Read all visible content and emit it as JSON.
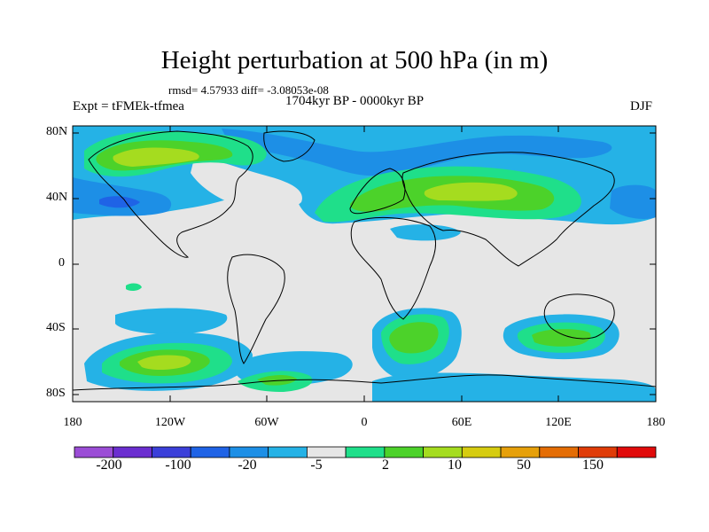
{
  "title": "Height perturbation at 500 hPa (in m)",
  "stats_line": "rmsd= 4.57933 diff= -3.08053e-08",
  "period": "1704kyr BP - 0000kyr BP",
  "experiment": "Expt = tFMEk-tfmea",
  "season": "DJF",
  "axes": {
    "lat_ticks": [
      "80N",
      "40N",
      "0",
      "40S",
      "80S"
    ],
    "lon_ticks": [
      "180",
      "120W",
      "60W",
      "0",
      "60E",
      "120E",
      "180"
    ]
  },
  "colorbar": {
    "tick_labels": [
      "-200",
      "-100",
      "-20",
      "-5",
      "2",
      "10",
      "50",
      "150"
    ],
    "colors": [
      "#9b4dd6",
      "#6b2ed0",
      "#3b3fd9",
      "#1f63e6",
      "#1d8fe6",
      "#25b2e6",
      "#e6e6e6",
      "#1fdf8a",
      "#4cd22a",
      "#a5dc1f",
      "#d6cc10",
      "#e6a00a",
      "#e46d05",
      "#e03c08",
      "#e10b0b"
    ]
  },
  "map_colors": {
    "background": "#e6e6e6",
    "light_blue": "#25b2e6",
    "mid_blue": "#1d8fe6",
    "dark_blue": "#1f63e6",
    "teal_green": "#1fdf8a",
    "green": "#4cd22a",
    "yellow_green": "#a5dc1f",
    "coastline": "#000000"
  }
}
